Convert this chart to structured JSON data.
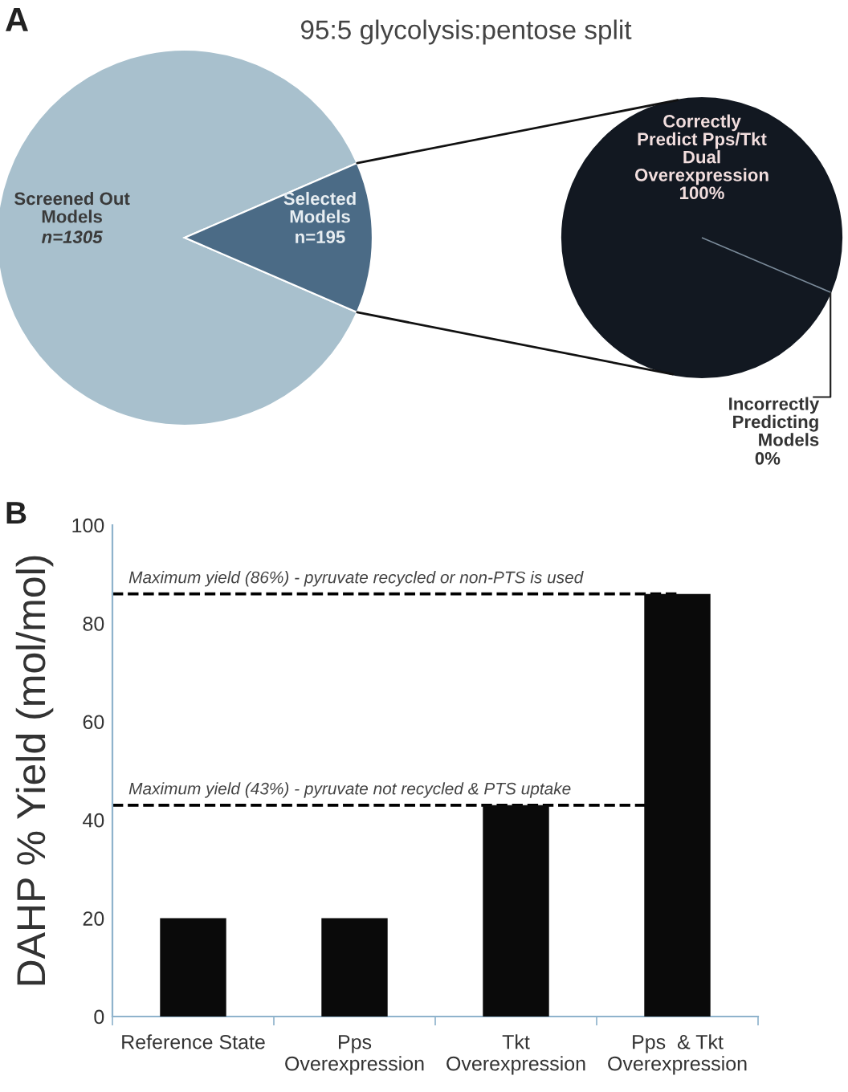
{
  "chart_data": [
    {
      "type": "pie",
      "title": "95:5 glycolysis:pentose split",
      "annotations": [
        "A"
      ],
      "categories": [
        "Screened Out\nModels",
        "Selected\nModels"
      ],
      "values": [
        1305,
        195
      ],
      "value_labels": [
        "n=1305",
        "n=195"
      ],
      "colors": [
        "#a8c0cd",
        "#4b6b86"
      ]
    },
    {
      "type": "pie",
      "categories": [
        "Correctly\nPredict Pps/Tkt\nDual\nOverexpression",
        "Incorrectly\nPredicting\nModels"
      ],
      "values": [
        100,
        0
      ],
      "value_labels": [
        "100%",
        "0%"
      ],
      "colors": [
        "#121821",
        "#121821"
      ]
    },
    {
      "type": "bar",
      "annotations": [
        "B"
      ],
      "ylabel": "DAHP % Yield (mol/mol)",
      "categories": [
        "Reference State",
        "Pps\nOverexpression",
        "Tkt\nOverexpression",
        "Pps  & Tkt\nOverexpression"
      ],
      "values": [
        20,
        20,
        43,
        86
      ],
      "color": "#0a0a0a",
      "ylim": [
        0,
        100
      ],
      "yticks": [
        0,
        20,
        40,
        60,
        80,
        100
      ],
      "grid": false,
      "ref_lines": [
        {
          "axis": "y",
          "value": 86,
          "label": "Maximum yield (86%) - pyruvate recycled or non-PTS is used",
          "color": "#000000",
          "line_style": "dashed"
        },
        {
          "axis": "y",
          "value": 43,
          "label": "Maximum yield (43%) - pyruvate not recycled & PTS uptake",
          "color": "#000000",
          "line_style": "dashed"
        }
      ]
    }
  ]
}
